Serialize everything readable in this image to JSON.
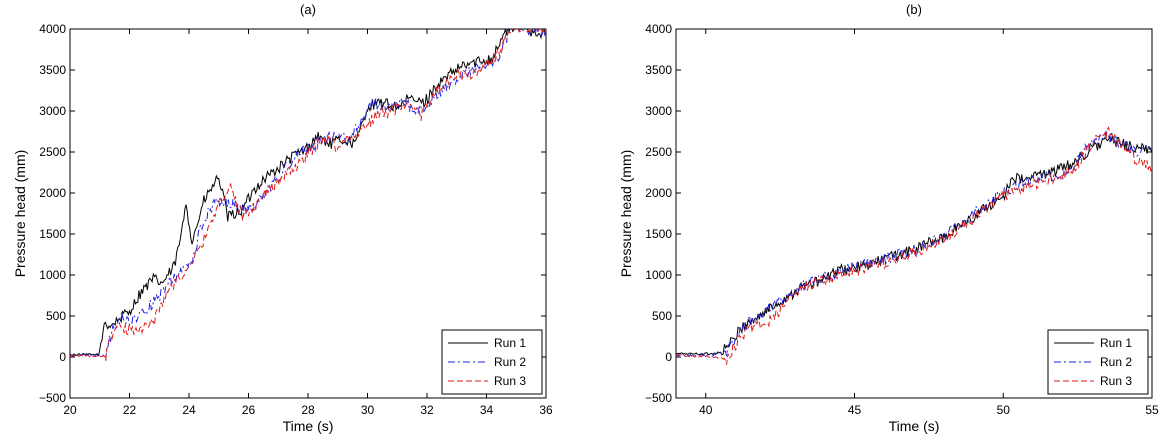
{
  "figure": {
    "panels": [
      "(a)",
      "(b)"
    ]
  },
  "chart_data": [
    {
      "type": "line",
      "title": "(a)",
      "xlabel": "Time (s)",
      "ylabel": "Pressure head (mm)",
      "xlim": [
        20,
        36
      ],
      "ylim": [
        -500,
        4000
      ],
      "xticks": [
        20,
        22,
        24,
        26,
        28,
        30,
        32,
        34,
        36
      ],
      "yticks": [
        -500,
        0,
        500,
        1000,
        1500,
        2000,
        2500,
        3000,
        3500,
        4000
      ],
      "ytick_labels": [
        "−500",
        "0",
        "500",
        "1000",
        "1500",
        "2000",
        "2500",
        "3000",
        "3500",
        "4000"
      ],
      "legend_position": "bottom-right",
      "grid": false,
      "series": [
        {
          "name": "Run 1",
          "color": "#000000",
          "dash": "solid",
          "x": [
            20.0,
            21.0,
            21.15,
            21.35,
            21.6,
            22.0,
            22.4,
            22.8,
            23.1,
            23.5,
            23.75,
            23.9,
            24.1,
            24.5,
            24.75,
            25.0,
            25.3,
            25.8,
            26.2,
            26.6,
            27.0,
            27.5,
            28.0,
            28.3,
            28.7,
            29.2,
            29.6,
            30.0,
            30.5,
            31.0,
            31.4,
            31.9,
            32.3,
            32.8,
            33.2,
            33.7,
            34.2,
            34.6,
            35.0,
            35.5,
            36.0
          ],
          "y": [
            30,
            30,
            420,
            380,
            450,
            560,
            800,
            950,
            900,
            1100,
            1500,
            1900,
            1400,
            1900,
            2050,
            2200,
            1700,
            1800,
            2050,
            2200,
            2300,
            2450,
            2550,
            2700,
            2600,
            2650,
            2600,
            3050,
            3100,
            3050,
            3150,
            3100,
            3300,
            3450,
            3550,
            3600,
            3650,
            3950,
            4050,
            3980,
            3950
          ]
        },
        {
          "name": "Run 2",
          "color": "#2020e0",
          "dash": "dashdot",
          "x": [
            20.0,
            21.2,
            21.4,
            21.7,
            22.0,
            22.4,
            22.9,
            23.3,
            23.8,
            24.1,
            24.4,
            24.8,
            25.2,
            25.6,
            26.0,
            26.5,
            27.0,
            27.5,
            28.0,
            28.5,
            29.0,
            29.4,
            29.8,
            30.2,
            30.7,
            31.2,
            31.7,
            32.1,
            32.5,
            33.0,
            33.5,
            34.0,
            34.4,
            34.8,
            35.3,
            36.0
          ],
          "y": [
            20,
            20,
            300,
            500,
            430,
            520,
            700,
            880,
            1050,
            1150,
            1600,
            1850,
            1900,
            1850,
            1800,
            1950,
            2200,
            2400,
            2550,
            2650,
            2700,
            2650,
            2900,
            3100,
            3050,
            3100,
            3000,
            3100,
            3250,
            3400,
            3500,
            3550,
            3650,
            4000,
            4000,
            3950
          ]
        },
        {
          "name": "Run 3",
          "color": "#e01a1a",
          "dash": "dashed",
          "x": [
            20.0,
            21.2,
            21.5,
            21.9,
            22.3,
            22.8,
            23.2,
            23.6,
            24.0,
            24.3,
            24.6,
            25.0,
            25.4,
            25.8,
            26.2,
            26.7,
            27.2,
            27.7,
            28.1,
            28.6,
            29.0,
            29.5,
            29.9,
            30.3,
            30.8,
            31.3,
            31.8,
            32.2,
            32.7,
            33.1,
            33.6,
            34.0,
            34.4,
            34.8,
            35.3,
            36.0
          ],
          "y": [
            20,
            10,
            380,
            320,
            350,
            420,
            750,
            950,
            1050,
            1300,
            1500,
            1900,
            2050,
            1700,
            1850,
            2050,
            2200,
            2350,
            2500,
            2700,
            2550,
            2700,
            2800,
            2950,
            3000,
            3050,
            2950,
            3200,
            3350,
            3450,
            3450,
            3550,
            3700,
            4000,
            4000,
            4000
          ]
        }
      ]
    },
    {
      "type": "line",
      "title": "(b)",
      "xlabel": "Time (s)",
      "ylabel": "Pressure head (mm)",
      "xlim": [
        39,
        55
      ],
      "ylim": [
        -500,
        4000
      ],
      "xticks": [
        40,
        45,
        50,
        55
      ],
      "yticks": [
        -500,
        0,
        500,
        1000,
        1500,
        2000,
        2500,
        3000,
        3500,
        4000
      ],
      "ytick_labels": [
        "−500",
        "0",
        "500",
        "1000",
        "1500",
        "2000",
        "2500",
        "3000",
        "3500",
        "4000"
      ],
      "legend_position": "bottom-right",
      "grid": false,
      "series": [
        {
          "name": "Run 1",
          "color": "#000000",
          "dash": "solid",
          "x": [
            39.0,
            40.2,
            40.5,
            40.8,
            41.0,
            41.3,
            41.6,
            42.0,
            42.4,
            42.8,
            43.2,
            43.6,
            44.0,
            44.4,
            45.0,
            45.5,
            46.0,
            46.5,
            47.0,
            47.5,
            48.0,
            48.5,
            49.0,
            49.5,
            50.0,
            50.3,
            50.7,
            51.0,
            51.5,
            52.0,
            52.5,
            53.0,
            53.5,
            54.0,
            54.5,
            55.0
          ],
          "y": [
            40,
            40,
            60,
            150,
            250,
            400,
            450,
            550,
            650,
            750,
            850,
            900,
            950,
            1050,
            1080,
            1120,
            1200,
            1250,
            1300,
            1400,
            1450,
            1600,
            1700,
            1850,
            1950,
            2200,
            2150,
            2200,
            2250,
            2300,
            2400,
            2550,
            2650,
            2600,
            2550,
            2500
          ]
        },
        {
          "name": "Run 2",
          "color": "#2020e0",
          "dash": "dashdot",
          "x": [
            39.0,
            40.3,
            40.7,
            41.0,
            41.4,
            41.8,
            42.2,
            42.6,
            43.0,
            43.5,
            44.0,
            44.5,
            45.0,
            45.5,
            46.0,
            46.5,
            47.0,
            47.5,
            48.0,
            48.5,
            49.0,
            49.5,
            50.0,
            50.5,
            51.0,
            51.5,
            52.0,
            52.5,
            53.0,
            53.5,
            54.0,
            54.5,
            55.0
          ],
          "y": [
            20,
            20,
            80,
            250,
            400,
            500,
            600,
            700,
            820,
            900,
            980,
            1050,
            1100,
            1150,
            1200,
            1250,
            1300,
            1380,
            1480,
            1600,
            1750,
            1900,
            2000,
            2100,
            2150,
            2200,
            2200,
            2400,
            2650,
            2700,
            2600,
            2500,
            2550
          ]
        },
        {
          "name": "Run 3",
          "color": "#e01a1a",
          "dash": "dashed",
          "x": [
            39.0,
            40.3,
            40.7,
            41.0,
            41.4,
            41.8,
            42.2,
            42.6,
            43.0,
            43.5,
            44.0,
            44.5,
            45.0,
            45.5,
            46.0,
            46.5,
            47.0,
            47.5,
            48.0,
            48.5,
            49.0,
            49.5,
            50.0,
            50.5,
            51.0,
            51.5,
            52.0,
            52.5,
            53.0,
            53.5,
            54.0,
            54.5,
            55.0
          ],
          "y": [
            20,
            0,
            -30,
            150,
            350,
            400,
            450,
            600,
            800,
            880,
            930,
            1000,
            1050,
            1100,
            1150,
            1200,
            1280,
            1350,
            1450,
            1550,
            1700,
            1850,
            1950,
            2050,
            2100,
            2150,
            2200,
            2350,
            2600,
            2750,
            2550,
            2400,
            2300
          ]
        }
      ]
    }
  ]
}
